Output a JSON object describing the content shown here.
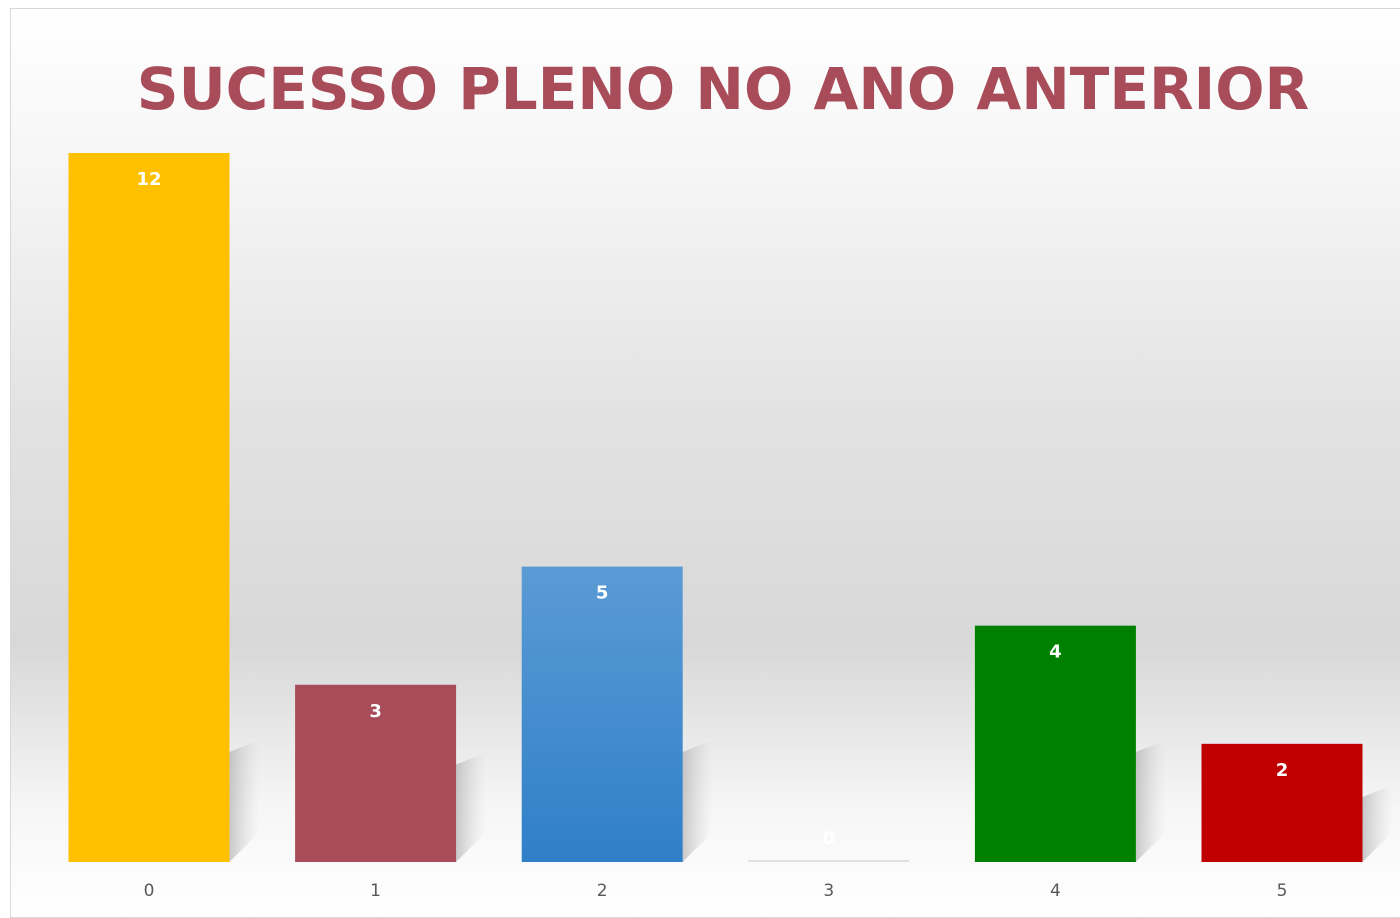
{
  "chart_data": {
    "type": "bar",
    "title": "SUCESSO PLENO NO ANO ANTERIOR",
    "xlabel": "",
    "ylabel": "",
    "categories": [
      "0",
      "1",
      "2",
      "3",
      "4",
      "5"
    ],
    "values": [
      12,
      3,
      5,
      0,
      4,
      2
    ],
    "colors": [
      "#ffc000",
      "#a84c5a",
      "#4d93d6",
      "#e0e0e0",
      "#008000",
      "#c00000"
    ],
    "ylim": [
      0,
      12
    ],
    "grid": false,
    "legend": "none",
    "data_labels": true
  }
}
